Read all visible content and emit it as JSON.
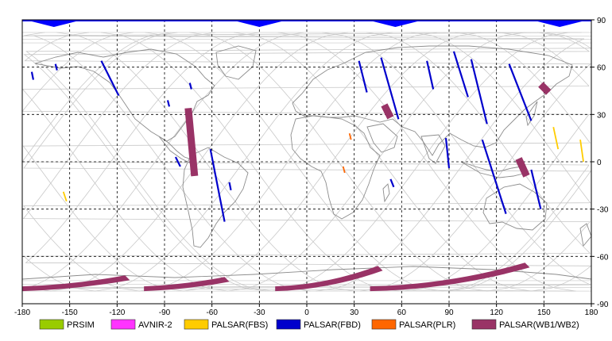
{
  "map": {
    "x_ticks": [
      "-180",
      "-150",
      "-120",
      "-90",
      "-60",
      "-30",
      "0",
      "30",
      "60",
      "90",
      "120",
      "150",
      "180"
    ],
    "y_ticks": [
      "90",
      "60",
      "30",
      "0",
      "-30",
      "-60",
      "-90"
    ],
    "x_range": [
      -180,
      180
    ],
    "y_range": [
      -90,
      90
    ],
    "grid": "dashed",
    "colors": {
      "orbit_track": "#c8c8c8",
      "coastline": "#8c8c8c",
      "coverage_band": "#0000ff"
    }
  },
  "legend": {
    "items": [
      {
        "label": "PRSIM",
        "color": "#99cc00"
      },
      {
        "label": "AVNIR-2",
        "color": "#ff33ff"
      },
      {
        "label": "PALSAR(FBS)",
        "color": "#ffcc00"
      },
      {
        "label": "PALSAR(FBD)",
        "color": "#0000cc"
      },
      {
        "label": "PALSAR(PLR)",
        "color": "#ff6600"
      },
      {
        "label": "PALSAR(WB1/WB2)",
        "color": "#993366"
      }
    ]
  },
  "acquisitions": {
    "fbd_strips": [
      {
        "lon": [
          -174,
          -173
        ],
        "lat": [
          57,
          52
        ]
      },
      {
        "lon": [
          -159,
          -158
        ],
        "lat": [
          62,
          58
        ]
      },
      {
        "lon": [
          -130,
          -119
        ],
        "lat": [
          64,
          42
        ]
      },
      {
        "lon": [
          -88,
          -87
        ],
        "lat": [
          39,
          35
        ]
      },
      {
        "lon": [
          -74,
          -73
        ],
        "lat": [
          50,
          46
        ]
      },
      {
        "lon": [
          -83,
          -80
        ],
        "lat": [
          3,
          -3
        ]
      },
      {
        "lon": [
          -61,
          -52
        ],
        "lat": [
          8,
          -38
        ]
      },
      {
        "lon": [
          -49,
          -48
        ],
        "lat": [
          -13,
          -18
        ]
      },
      {
        "lon": [
          33,
          38
        ],
        "lat": [
          64,
          44
        ]
      },
      {
        "lon": [
          47,
          58
        ],
        "lat": [
          66,
          27
        ]
      },
      {
        "lon": [
          76,
          80
        ],
        "lat": [
          64,
          46
        ]
      },
      {
        "lon": [
          93,
          102
        ],
        "lat": [
          70,
          41
        ]
      },
      {
        "lon": [
          104,
          114
        ],
        "lat": [
          65,
          24
        ]
      },
      {
        "lon": [
          128,
          142
        ],
        "lat": [
          62,
          26
        ]
      },
      {
        "lon": [
          88,
          90
        ],
        "lat": [
          15,
          -4
        ]
      },
      {
        "lon": [
          111,
          126
        ],
        "lat": [
          14,
          -33
        ]
      },
      {
        "lon": [
          142,
          148
        ],
        "lat": [
          -5,
          -30
        ]
      },
      {
        "lon": [
          53,
          55
        ],
        "lat": [
          -11,
          -16
        ]
      }
    ],
    "wb_strips": [
      {
        "lon": [
          -75,
          -71
        ],
        "lat": [
          34,
          -9
        ]
      },
      {
        "lon": [
          49,
          53
        ],
        "lat": [
          36,
          28
        ]
      },
      {
        "lon": [
          148,
          153
        ],
        "lat": [
          49,
          44
        ]
      },
      {
        "lon": [
          134,
          139
        ],
        "lat": [
          2,
          -9
        ]
      }
    ],
    "wb_antarctic": [
      {
        "lon": [
          -180,
          -115
        ],
        "lat": [
          -72,
          -79
        ]
      },
      {
        "lon": [
          -103,
          -52
        ],
        "lat": [
          -73,
          -79
        ]
      },
      {
        "lon": [
          -20,
          45
        ],
        "lat": [
          -66,
          -79
        ]
      },
      {
        "lon": [
          40,
          138
        ],
        "lat": [
          -64,
          -79
        ]
      }
    ],
    "fbs_strips": [
      {
        "lon": [
          -154,
          -152
        ],
        "lat": [
          -19,
          -25
        ]
      },
      {
        "lon": [
          156,
          159
        ],
        "lat": [
          22,
          8
        ]
      },
      {
        "lon": [
          173,
          175
        ],
        "lat": [
          14,
          0
        ]
      }
    ],
    "plr_strips": [
      {
        "lon": [
          27,
          28
        ],
        "lat": [
          18,
          14
        ]
      },
      {
        "lon": [
          23,
          24
        ],
        "lat": [
          -3,
          -7
        ]
      }
    ],
    "polar_coverage_peaks": [
      -160,
      -30,
      56,
      160
    ]
  }
}
